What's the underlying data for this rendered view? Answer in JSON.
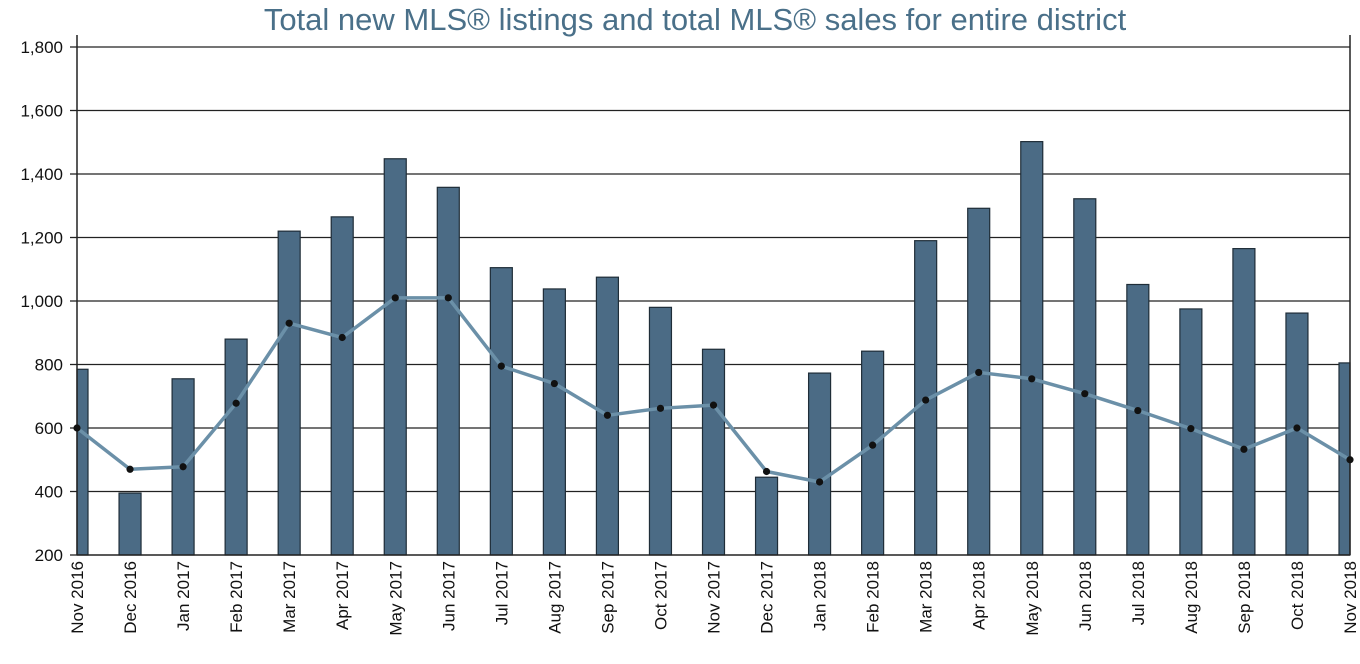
{
  "chart_data": {
    "type": "bar",
    "title": "Total new MLS® listings and total MLS® sales for entire district",
    "xlabel": "",
    "ylabel": "",
    "ylim": [
      200,
      1800
    ],
    "yticks": [
      200,
      400,
      600,
      800,
      1000,
      1200,
      1400,
      1600,
      1800
    ],
    "ytick_labels": [
      "200",
      "400",
      "600",
      "800",
      "1,000",
      "1,200",
      "1,400",
      "1,600",
      "1,800"
    ],
    "grid": true,
    "categories": [
      "Nov 2016",
      "Dec 2016",
      "Jan 2017",
      "Feb 2017",
      "Mar 2017",
      "Apr 2017",
      "May 2017",
      "Jun 2017",
      "Jul 2017",
      "Aug 2017",
      "Sep 2017",
      "Oct 2017",
      "Nov 2017",
      "Dec 2017",
      "Jan 2018",
      "Feb 2018",
      "Mar 2018",
      "Apr 2018",
      "May 2018",
      "Jun 2018",
      "Jul 2018",
      "Aug 2018",
      "Sep 2018",
      "Oct 2018",
      "Nov 2018"
    ],
    "series": [
      {
        "name": "Total new MLS® listings",
        "type": "bar",
        "color": "#4b6b85",
        "values": [
          785,
          395,
          755,
          880,
          1220,
          1265,
          1448,
          1358,
          1105,
          1038,
          1075,
          980,
          848,
          445,
          773,
          842,
          1190,
          1292,
          1502,
          1322,
          1052,
          975,
          1165,
          962,
          805
        ]
      },
      {
        "name": "Total MLS® sales",
        "type": "line",
        "color": "#6b90a8",
        "marker_color": "#111111",
        "values": [
          600,
          470,
          478,
          678,
          930,
          885,
          1010,
          1010,
          795,
          740,
          640,
          662,
          672,
          463,
          430,
          546,
          688,
          775,
          755,
          708,
          655,
          598,
          533,
          600,
          500
        ]
      }
    ]
  }
}
